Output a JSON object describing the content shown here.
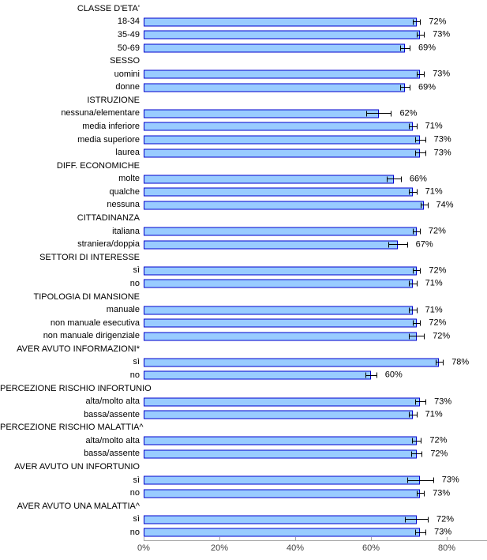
{
  "chart_data": {
    "type": "bar",
    "orientation": "horizontal",
    "title": "",
    "xlabel": "",
    "ylabel": "",
    "value_format": "percent",
    "xlim": [
      0,
      90
    ],
    "x_ticks": [
      "0%",
      "20%",
      "40%",
      "60%",
      "80%"
    ],
    "x_tick_values": [
      0,
      20,
      40,
      60,
      80
    ],
    "grid": false,
    "legend": false,
    "error_bars": true,
    "colors": {
      "bar_fill": "#99CCFF",
      "bar_border": "#0000CC",
      "error_bar": "#000000",
      "axis_line": "#A6A6A6",
      "label_text": "#000000",
      "tick_text": "#3f3f3f"
    },
    "groups": [
      {
        "header": "CLASSE D'ETA'",
        "items": [
          {
            "label": "18-34",
            "value": 72,
            "error": 1.0,
            "display": "72%"
          },
          {
            "label": "35-49",
            "value": 73,
            "error": 1.0,
            "display": "73%"
          },
          {
            "label": "50-69",
            "value": 69,
            "error": 1.2,
            "display": "69%"
          }
        ]
      },
      {
        "header": "SESSO",
        "items": [
          {
            "label": "uomini",
            "value": 73,
            "error": 1.0,
            "display": "73%"
          },
          {
            "label": "donne",
            "value": 69,
            "error": 1.2,
            "display": "69%"
          }
        ]
      },
      {
        "header": "ISTRUZIONE",
        "items": [
          {
            "label": "nessuna/elementare",
            "value": 62,
            "error": 3.3,
            "display": "62%"
          },
          {
            "label": "media inferiore",
            "value": 71,
            "error": 1.0,
            "display": "71%"
          },
          {
            "label": "media superiore",
            "value": 73,
            "error": 1.3,
            "display": "73%"
          },
          {
            "label": "laurea",
            "value": 73,
            "error": 1.3,
            "display": "73%"
          }
        ]
      },
      {
        "header": "DIFF. ECONOMICHE",
        "items": [
          {
            "label": "molte",
            "value": 66,
            "error": 1.9,
            "display": "66%"
          },
          {
            "label": "qualche",
            "value": 71,
            "error": 1.0,
            "display": "71%"
          },
          {
            "label": "nessuna",
            "value": 74,
            "error": 0.9,
            "display": "74%"
          }
        ]
      },
      {
        "header": "CITTADINANZA",
        "items": [
          {
            "label": "italiana",
            "value": 72,
            "error": 0.9,
            "display": "72%"
          },
          {
            "label": "straniera/doppia",
            "value": 67,
            "error": 2.5,
            "display": "67%"
          }
        ]
      },
      {
        "header": "SETTORI DI INTERESSE",
        "items": [
          {
            "label": "sì",
            "value": 72,
            "error": 1.0,
            "display": "72%"
          },
          {
            "label": "no",
            "value": 71,
            "error": 1.0,
            "display": "71%"
          }
        ]
      },
      {
        "header": "TIPOLOGIA DI MANSIONE",
        "items": [
          {
            "label": "manuale",
            "value": 71,
            "error": 1.0,
            "display": "71%"
          },
          {
            "label": "non manuale esecutiva",
            "value": 72,
            "error": 1.0,
            "display": "72%"
          },
          {
            "label": "non manuale dirigenziale",
            "value": 72,
            "error": 2.0,
            "display": "72%"
          }
        ]
      },
      {
        "header": "AVER AVUTO INFORMAZIONI*",
        "items": [
          {
            "label": "sì",
            "value": 78,
            "error": 1.0,
            "display": "78%"
          },
          {
            "label": "no",
            "value": 60,
            "error": 1.4,
            "display": "60%"
          }
        ]
      },
      {
        "header": "PERCEZIONE RISCHIO INFORTUNIO",
        "items": [
          {
            "label": "alta/molto alta",
            "value": 73,
            "error": 1.4,
            "display": "73%"
          },
          {
            "label": "bassa/assente",
            "value": 71,
            "error": 1.0,
            "display": "71%"
          }
        ]
      },
      {
        "header": "PERCEZIONE RISCHIO MALATTIA^",
        "items": [
          {
            "label": "alta/molto alta",
            "value": 72,
            "error": 1.2,
            "display": "72%"
          },
          {
            "label": "bassa/assente",
            "value": 72,
            "error": 1.4,
            "display": "72%"
          }
        ]
      },
      {
        "header": "AVER AVUTO UN INFORTUNIO",
        "items": [
          {
            "label": "sì",
            "value": 73,
            "error": 3.4,
            "display": "73%"
          },
          {
            "label": "no",
            "value": 73,
            "error": 1.0,
            "display": "73%"
          }
        ]
      },
      {
        "header": "AVER AVUTO UNA MALATTIA^",
        "items": [
          {
            "label": "sì",
            "value": 72,
            "error": 3.0,
            "display": "72%"
          },
          {
            "label": "no",
            "value": 73,
            "error": 1.4,
            "display": "73%"
          }
        ]
      }
    ]
  }
}
